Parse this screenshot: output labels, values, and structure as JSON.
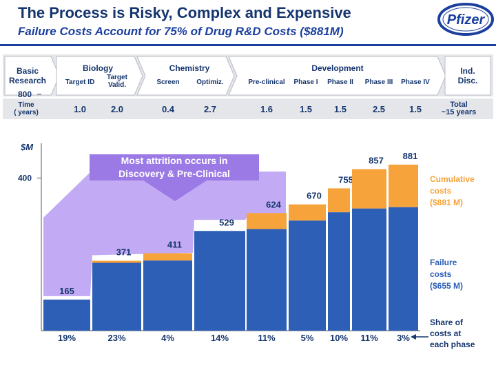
{
  "header": {
    "title": "The Process is Risky, Complex and Expensive",
    "subtitle": "Failure Costs Account for 75% of Drug R&D Costs ($881M)",
    "logo_text": "Pfizer"
  },
  "colors": {
    "navy": "#15356e",
    "blue": "#2c5fb5",
    "orange": "#f6a33c",
    "purple": "#b79cf2",
    "purple_dark": "#9c7ae6",
    "band": "#e4e6ea"
  },
  "process": {
    "basic_research": [
      "Basic",
      "Research"
    ],
    "groups": [
      {
        "name": "Biology",
        "steps": [
          "Target ID",
          "Target Valid."
        ]
      },
      {
        "name": "Chemistry",
        "steps": [
          "Screen",
          "Optimiz."
        ]
      },
      {
        "name": "Development",
        "steps": [
          "Pre-clinical",
          "Phase I",
          "Phase II",
          "Phase III",
          "Phase IV"
        ]
      }
    ],
    "ind_disc": [
      "Ind.",
      "Disc."
    ],
    "time_label": [
      "Time",
      "( years)"
    ],
    "times": [
      "1.0",
      "2.0",
      "0.4",
      "2.7",
      "1.6",
      "1.5",
      "1.5",
      "2.5",
      "1.5"
    ],
    "total": [
      "Total",
      "~15 years"
    ]
  },
  "chart_data": {
    "type": "bar",
    "ylabel": "$M",
    "yticks": [
      "800",
      "400"
    ],
    "ylim": [
      0,
      1000
    ],
    "categories": [
      "Target ID",
      "Target Valid.",
      "Screen",
      "Optimiz.",
      "Pre-clinical",
      "Phase I",
      "Phase II",
      "Phase III",
      "Phase IV"
    ],
    "series": [
      {
        "name": "Failure costs",
        "values": [
          165,
          360,
          372,
          529,
          539,
          584,
          628,
          648,
          655
        ]
      },
      {
        "name": "Cumulative costs",
        "values": [
          165,
          371,
          411,
          529,
          624,
          670,
          755,
          857,
          881
        ]
      }
    ],
    "value_labels": [
      "165",
      "371",
      "411",
      "529",
      "624",
      "670",
      "755",
      "857",
      "881"
    ],
    "shares": [
      "19%",
      "23%",
      "4%",
      "14%",
      "11%",
      "5%",
      "10%",
      "11%",
      "3%"
    ],
    "callout": [
      "Most attrition occurs in",
      "Discovery & Pre-Clinical"
    ],
    "legend": {
      "cumulative": [
        "Cumulative",
        "costs",
        "($881 M)"
      ],
      "failure": [
        "Failure",
        "costs",
        "($655 M)"
      ],
      "share": [
        "Share of",
        "costs at",
        "each phase"
      ]
    }
  }
}
